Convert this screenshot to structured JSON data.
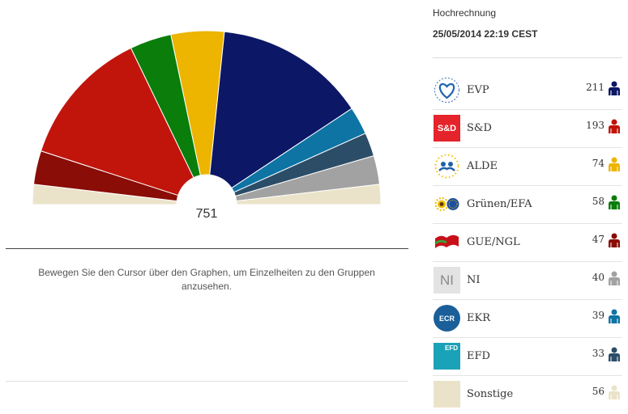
{
  "header": {
    "label": "Hochrechnung",
    "date": "25/05/2014 22:19 CEST"
  },
  "hint": "Bewegen Sie den Cursor über den Graphen, um Einzelheiten zu den Gruppen anzusehen.",
  "chart_data": {
    "type": "pie",
    "variant": "hemicycle",
    "total_label": "751",
    "order": [
      "Sonstige",
      "GUE/NGL",
      "S&D",
      "Grünen/EFA",
      "ALDE",
      "EVP",
      "EKR",
      "EFD",
      "NI",
      "Sonstige"
    ],
    "parties": [
      {
        "name": "EVP",
        "seats": 211,
        "seats_label": "211",
        "color": "#0c1766",
        "logo": "evp-logo-icon"
      },
      {
        "name": "S&D",
        "seats": 193,
        "seats_label": "193",
        "color": "#c1150c",
        "logo": "sd-logo-icon"
      },
      {
        "name": "ALDE",
        "seats": 74,
        "seats_label": "74",
        "color": "#edb400",
        "logo": "alde-logo-icon"
      },
      {
        "name": "Grünen/EFA",
        "seats": 58,
        "seats_label": "58",
        "color": "#0a7d0a",
        "logo": "greens-logo-icon"
      },
      {
        "name": "GUE/NGL",
        "seats": 47,
        "seats_label": "47",
        "color": "#8a0d07",
        "logo": "gue-logo-icon"
      },
      {
        "name": "NI",
        "seats": 40,
        "seats_label": "40",
        "color": "#a2a2a2",
        "logo": "ni-logo-icon",
        "logo_text": "NI"
      },
      {
        "name": "EKR",
        "seats": 39,
        "seats_label": "39",
        "color": "#0d74a4",
        "logo": "ekr-logo-icon",
        "logo_text": "ECR"
      },
      {
        "name": "EFD",
        "seats": 33,
        "seats_label": "33",
        "color": "#2b4d68",
        "logo": "efd-logo-icon",
        "logo_text": "EFD"
      },
      {
        "name": "Sonstige",
        "seats": 56,
        "seats_label": "56",
        "color": "#ebe3c9",
        "logo": "sonstige-logo-icon"
      }
    ]
  }
}
